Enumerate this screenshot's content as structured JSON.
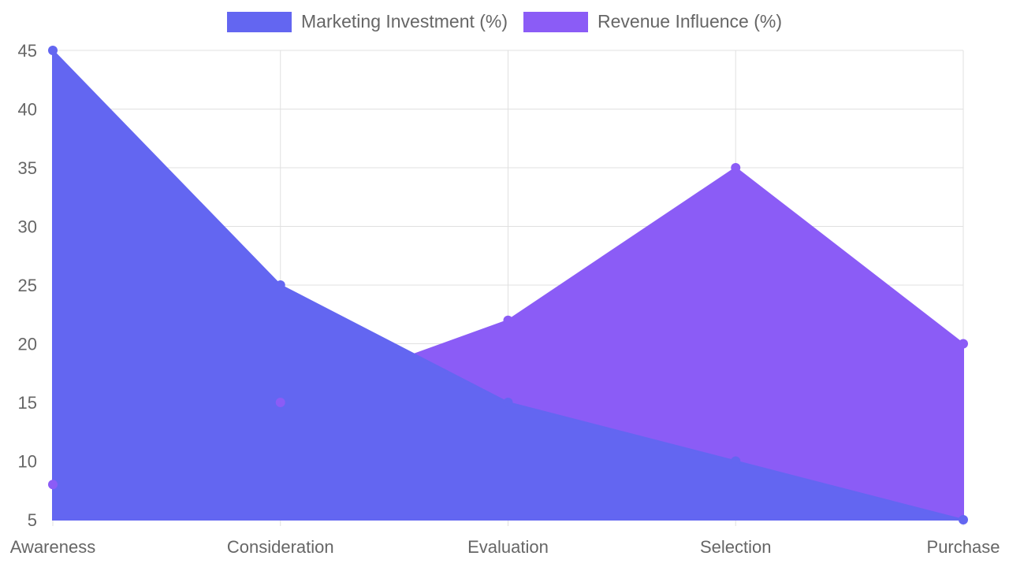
{
  "chart_data": {
    "type": "area",
    "categories": [
      "Awareness",
      "Consideration",
      "Evaluation",
      "Selection",
      "Purchase"
    ],
    "series": [
      {
        "name": "Marketing Investment (%)",
        "values": [
          45,
          25,
          15,
          10,
          5
        ],
        "color": "#6366f1"
      },
      {
        "name": "Revenue Influence (%)",
        "values": [
          8,
          15,
          22,
          35,
          20
        ],
        "color": "#8b5cf6"
      }
    ],
    "ylim": [
      5,
      45
    ],
    "yticks": [
      5,
      10,
      15,
      20,
      25,
      30,
      35,
      40,
      45
    ],
    "grid": true,
    "legend": "top-center",
    "title": "",
    "xlabel": "",
    "ylabel": ""
  }
}
